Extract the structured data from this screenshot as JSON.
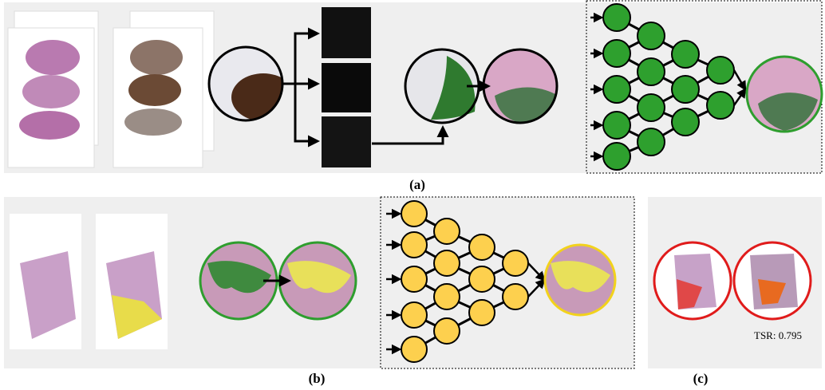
{
  "panels": [
    {
      "label": "(a)"
    },
    {
      "label": "(b)"
    },
    {
      "label": "(c)",
      "annotation": "TSR: 0.795"
    }
  ]
}
